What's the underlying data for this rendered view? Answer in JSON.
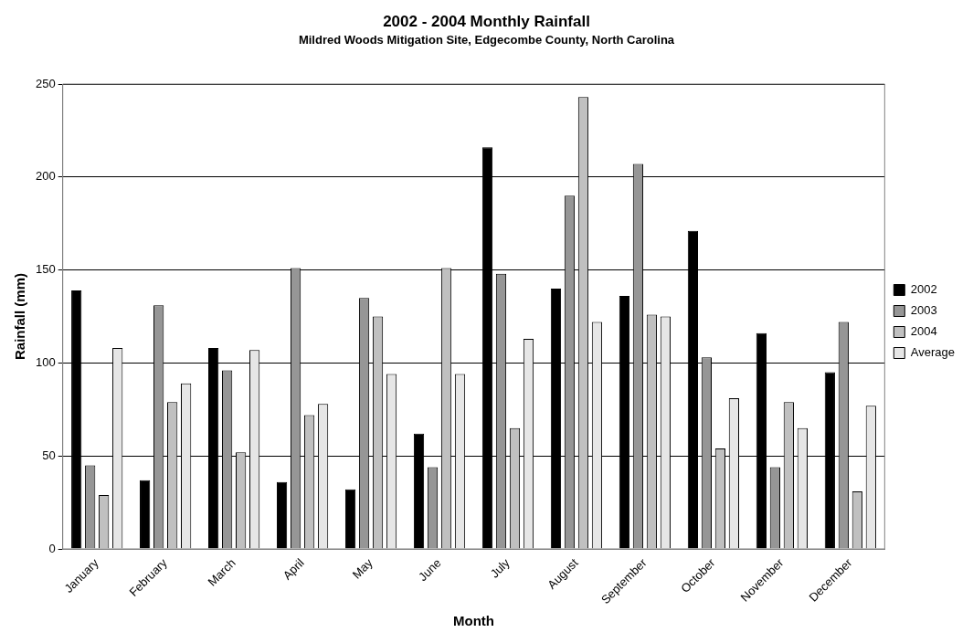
{
  "chart_data": {
    "type": "bar",
    "title": "2002 - 2004 Monthly Rainfall",
    "subtitle": "Mildred Woods Mitigation Site, Edgecombe County, North Carolina",
    "xlabel": "Month",
    "ylabel": "Rainfall (mm)",
    "categories": [
      "January",
      "February",
      "March",
      "April",
      "May",
      "June",
      "July",
      "August",
      "September",
      "October",
      "November",
      "December"
    ],
    "series": [
      {
        "name": "2002",
        "color": "#000000",
        "values": [
          139,
          37,
          108,
          36,
          32,
          62,
          216,
          140,
          136,
          171,
          116,
          95
        ]
      },
      {
        "name": "2003",
        "color": "#969696",
        "values": [
          45,
          131,
          96,
          151,
          135,
          44,
          148,
          190,
          207,
          103,
          44,
          122
        ]
      },
      {
        "name": "2004",
        "color": "#c0c0c0",
        "values": [
          29,
          79,
          52,
          72,
          125,
          151,
          65,
          243,
          126,
          54,
          79,
          31
        ]
      },
      {
        "name": "Average",
        "color": "#e6e6e6",
        "values": [
          108,
          89,
          107,
          78,
          94,
          94,
          113,
          122,
          125,
          81,
          65,
          77
        ]
      }
    ],
    "ylim": [
      0,
      250
    ],
    "yticks": [
      0,
      50,
      100,
      150,
      200,
      250
    ],
    "grid": "y",
    "legend": "right"
  }
}
